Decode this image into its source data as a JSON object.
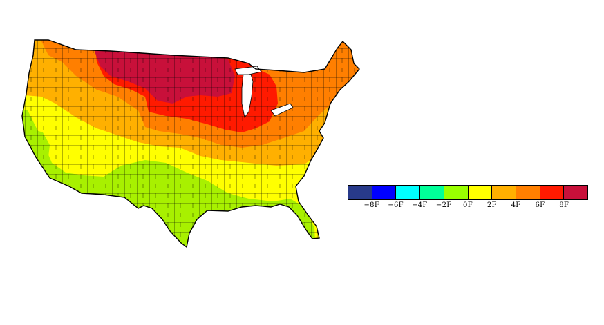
{
  "map": {
    "region": "contiguous-us",
    "variable": "temperature-change",
    "zones": [
      {
        "name": "dark-red",
        "color": "#c8103a"
      },
      {
        "name": "red",
        "color": "#ff1a00"
      },
      {
        "name": "dark-orange",
        "color": "#ff7f00"
      },
      {
        "name": "orange",
        "color": "#ffb000"
      },
      {
        "name": "yellow",
        "color": "#ffff00"
      },
      {
        "name": "yellow-green",
        "color": "#a8f000"
      }
    ]
  },
  "legend": {
    "colors": [
      "#283a8a",
      "#0000ff",
      "#00ffff",
      "#00ff99",
      "#99ff00",
      "#ffff00",
      "#ffb000",
      "#ff7f00",
      "#ff1a00",
      "#c8103a"
    ],
    "labels": [
      "−8F",
      "−6F",
      "−4F",
      "−2F",
      "0F",
      "2F",
      "4F",
      "6F",
      "8F"
    ]
  }
}
